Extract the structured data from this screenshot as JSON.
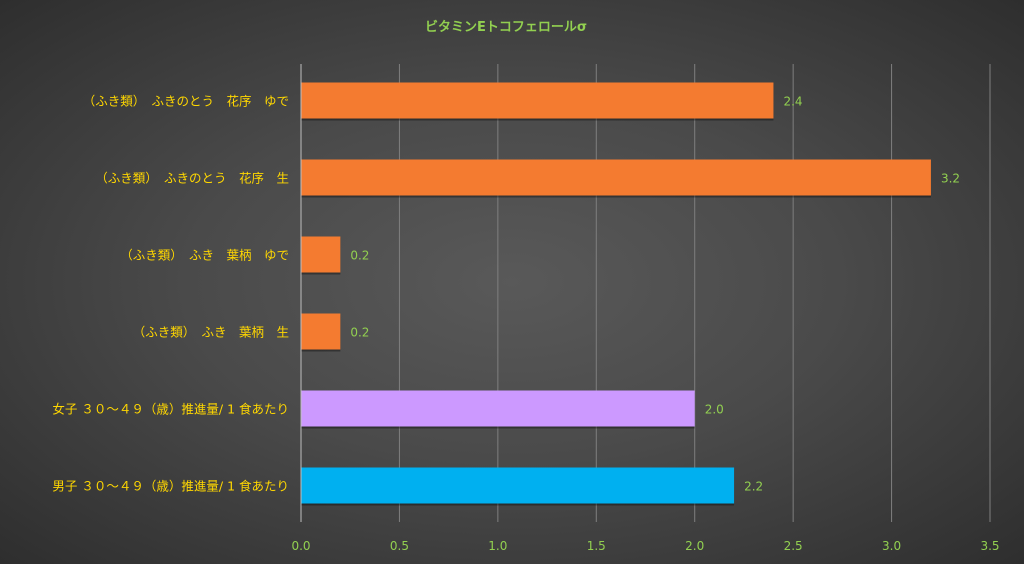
{
  "chart_data": {
    "type": "bar",
    "orientation": "horizontal",
    "title": "ビタミンEトコフェロールσ",
    "categories": [
      "（ふき類）　ふきのとう　花序　ゆで",
      "（ふき類）　ふきのとう　花序　生",
      "（ふき類）　ふき　葉柄　ゆで",
      "（ふき類）　ふき　葉柄　生",
      "女子 ３０～４９（歳）推進量/ 1 食あたり",
      "男子 ３０～４９（歳）推進量/ 1 食あたり"
    ],
    "values": [
      2.4,
      3.2,
      0.2,
      0.2,
      2.0,
      2.2
    ],
    "data_labels": [
      "2.4",
      "3.2",
      "0.2",
      "0.2",
      "2.0",
      "2.2"
    ],
    "bar_colors": [
      "#f47b30",
      "#f47b30",
      "#f47b30",
      "#f47b30",
      "#cc99ff",
      "#00b0f0"
    ],
    "xlim": [
      0,
      3.5
    ],
    "x_ticks": [
      "0.0",
      "0.5",
      "1.0",
      "1.5",
      "2.0",
      "2.5",
      "3.0",
      "3.5"
    ],
    "grid": true,
    "legend": "none"
  }
}
